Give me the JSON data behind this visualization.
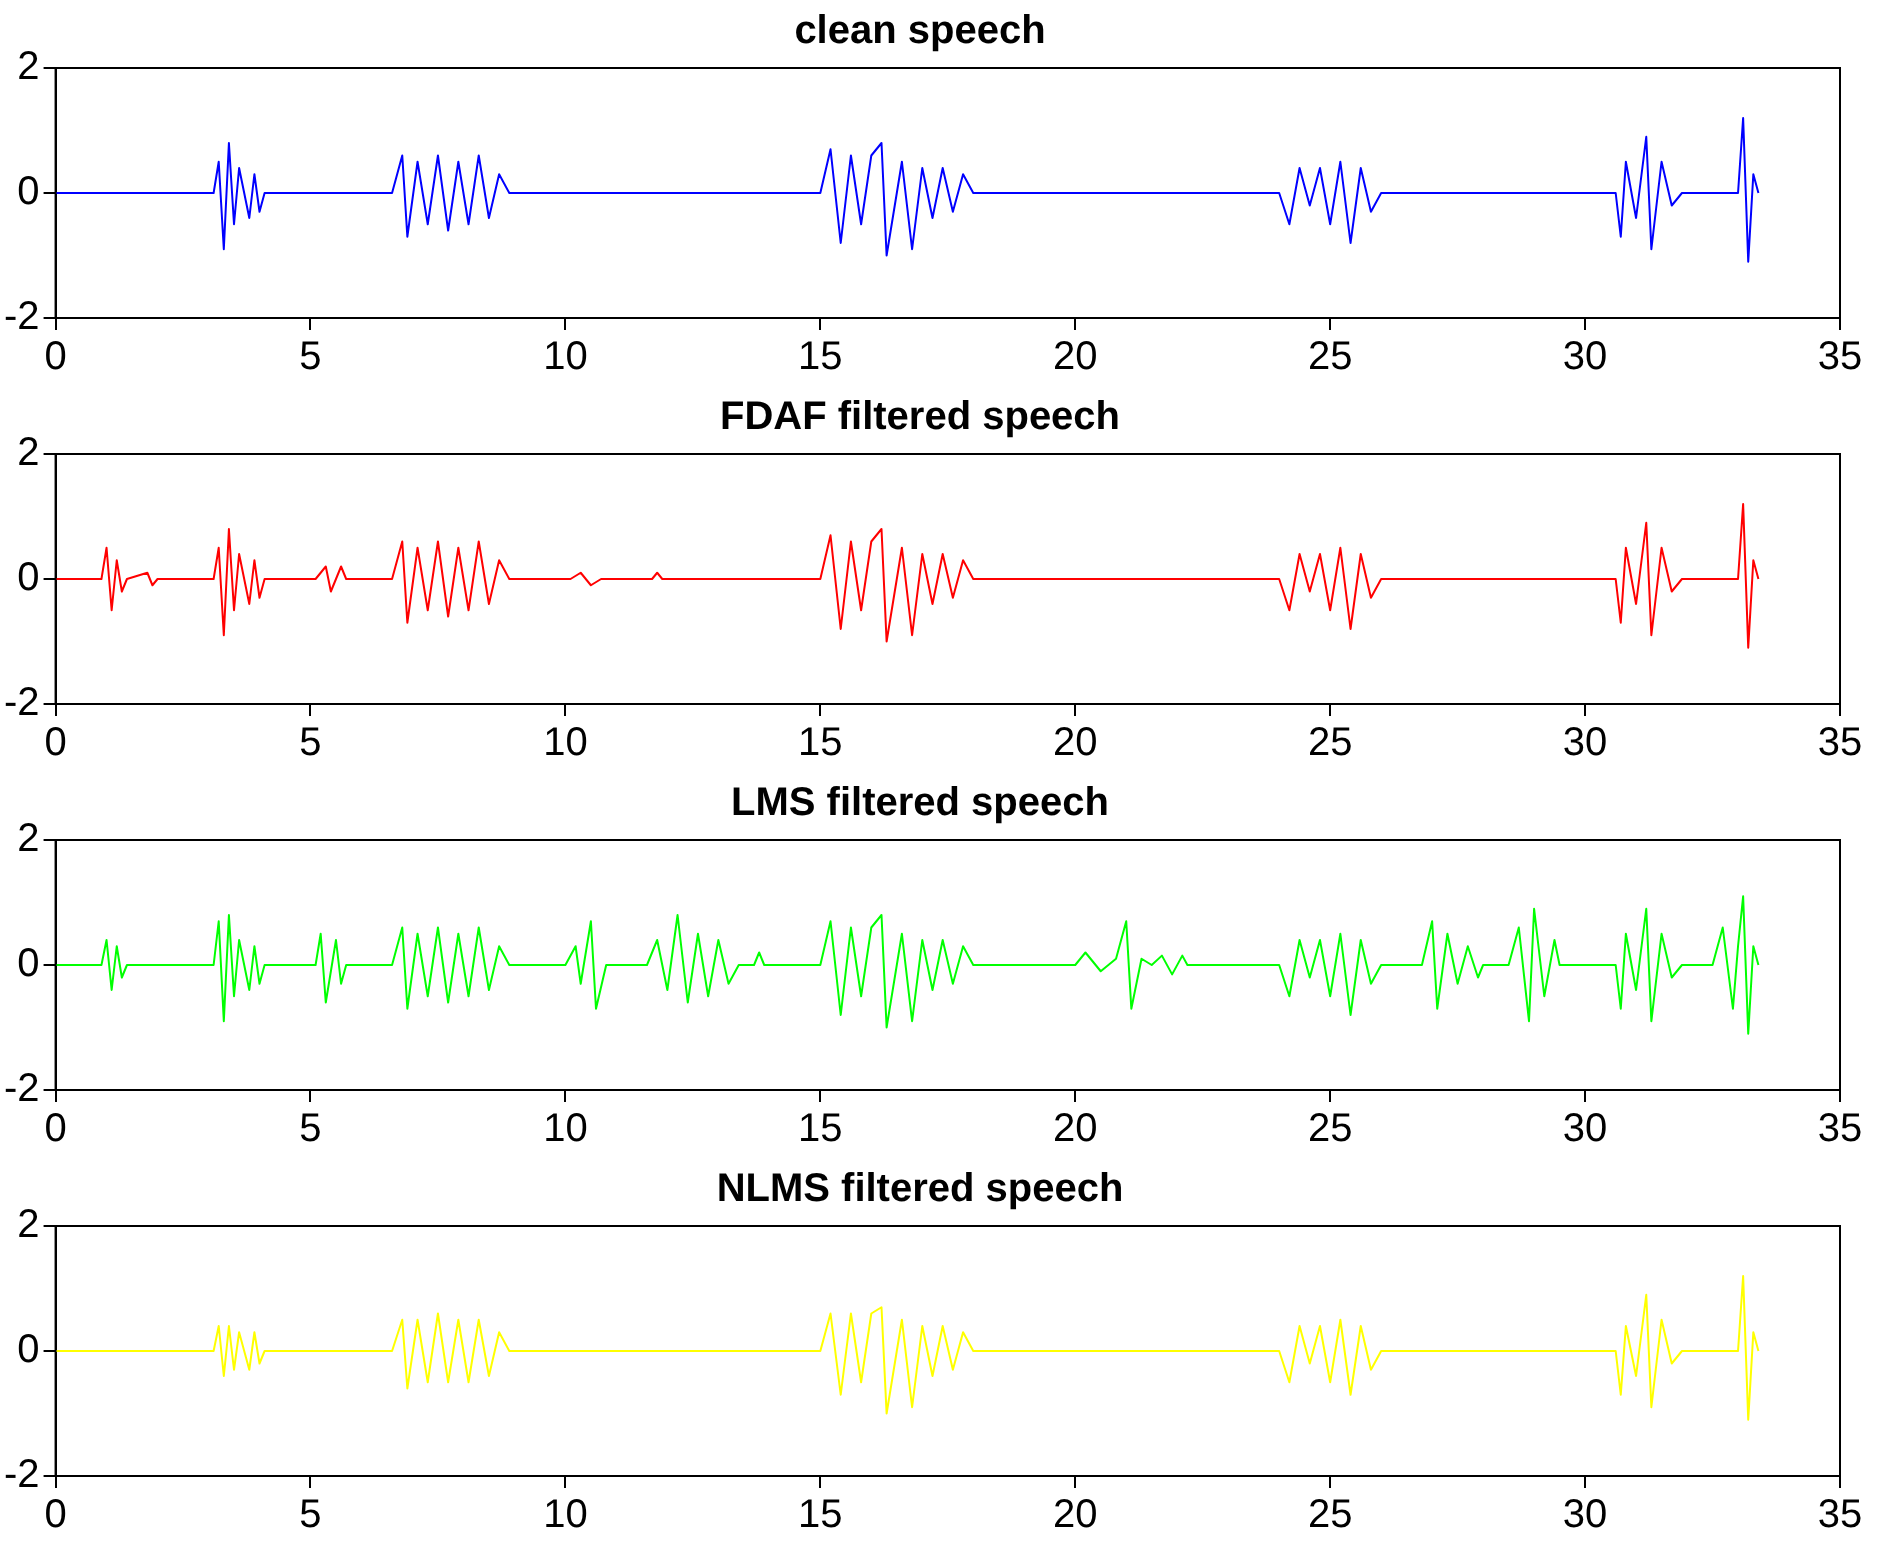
{
  "chart_data": [
    {
      "type": "line",
      "title": "clean speech",
      "xlim": [
        0,
        35
      ],
      "xticks": [
        0,
        5,
        10,
        15,
        20,
        25,
        30,
        35
      ],
      "ylim": [
        -2,
        2
      ],
      "yticks": [
        -2,
        0,
        2
      ],
      "grid": false,
      "legend": false,
      "marker": "none",
      "series": [
        {
          "color": "#0000ff",
          "x": [
            0,
            3.1,
            3.2,
            3.3,
            3.4,
            3.5,
            3.6,
            3.8,
            3.9,
            4.0,
            4.1,
            6.6,
            6.8,
            6.9,
            7.1,
            7.3,
            7.5,
            7.7,
            7.9,
            8.1,
            8.3,
            8.5,
            8.7,
            8.9,
            15.0,
            15.2,
            15.4,
            15.6,
            15.8,
            16.0,
            16.2,
            16.3,
            16.6,
            16.8,
            17.0,
            17.2,
            17.4,
            17.6,
            17.8,
            18.0,
            24.0,
            24.2,
            24.4,
            24.6,
            24.8,
            25.0,
            25.2,
            25.4,
            25.6,
            25.8,
            26.0,
            30.6,
            30.7,
            30.8,
            31.0,
            31.2,
            31.3,
            31.5,
            31.7,
            31.9,
            33.0,
            33.1,
            33.2,
            33.3,
            33.4
          ],
          "values": [
            0,
            0,
            0.5,
            -0.9,
            0.8,
            -0.5,
            0.4,
            -0.4,
            0.3,
            -0.3,
            0,
            0,
            0.6,
            -0.7,
            0.5,
            -0.5,
            0.6,
            -0.6,
            0.5,
            -0.5,
            0.6,
            -0.4,
            0.3,
            0,
            0,
            0.7,
            -0.8,
            0.6,
            -0.5,
            0.6,
            0.8,
            -1.0,
            0.5,
            -0.9,
            0.4,
            -0.4,
            0.4,
            -0.3,
            0.3,
            0,
            0,
            -0.5,
            0.4,
            -0.2,
            0.4,
            -0.5,
            0.5,
            -0.8,
            0.4,
            -0.3,
            0,
            0,
            -0.7,
            0.5,
            -0.4,
            0.9,
            -0.9,
            0.5,
            -0.2,
            0,
            0,
            1.2,
            -1.1,
            0.3,
            0
          ]
        }
      ]
    },
    {
      "type": "line",
      "title": "FDAF filtered speech",
      "xlim": [
        0,
        35
      ],
      "xticks": [
        0,
        5,
        10,
        15,
        20,
        25,
        30,
        35
      ],
      "ylim": [
        -2,
        2
      ],
      "yticks": [
        -2,
        0,
        2
      ],
      "grid": false,
      "legend": false,
      "marker": "none",
      "series": [
        {
          "color": "#ff0000",
          "x": [
            0,
            0.9,
            1.0,
            1.1,
            1.2,
            1.3,
            1.4,
            1.8,
            1.9,
            2.0,
            3.1,
            3.2,
            3.3,
            3.4,
            3.5,
            3.6,
            3.8,
            3.9,
            4.0,
            4.1,
            5.1,
            5.3,
            5.4,
            5.6,
            5.7,
            6.6,
            6.8,
            6.9,
            7.1,
            7.3,
            7.5,
            7.7,
            7.9,
            8.1,
            8.3,
            8.5,
            8.7,
            8.9,
            10.1,
            10.3,
            10.5,
            10.7,
            11.7,
            11.8,
            11.9,
            15.0,
            15.2,
            15.4,
            15.6,
            15.8,
            16.0,
            16.2,
            16.3,
            16.6,
            16.8,
            17.0,
            17.2,
            17.4,
            17.6,
            17.8,
            18.0,
            24.0,
            24.2,
            24.4,
            24.6,
            24.8,
            25.0,
            25.2,
            25.4,
            25.6,
            25.8,
            26.0,
            30.6,
            30.7,
            30.8,
            31.0,
            31.2,
            31.3,
            31.5,
            31.7,
            31.9,
            33.0,
            33.1,
            33.2,
            33.3,
            33.4
          ],
          "values": [
            0,
            0,
            0.5,
            -0.5,
            0.3,
            -0.2,
            0,
            0.1,
            -0.1,
            0,
            0,
            0.5,
            -0.9,
            0.8,
            -0.5,
            0.4,
            -0.4,
            0.3,
            -0.3,
            0,
            0,
            0.2,
            -0.2,
            0.2,
            0,
            0,
            0.6,
            -0.7,
            0.5,
            -0.5,
            0.6,
            -0.6,
            0.5,
            -0.5,
            0.6,
            -0.4,
            0.3,
            0,
            0,
            0.1,
            -0.1,
            0,
            0,
            0.1,
            0,
            0,
            0.7,
            -0.8,
            0.6,
            -0.5,
            0.6,
            0.8,
            -1.0,
            0.5,
            -0.9,
            0.4,
            -0.4,
            0.4,
            -0.3,
            0.3,
            0,
            0,
            -0.5,
            0.4,
            -0.2,
            0.4,
            -0.5,
            0.5,
            -0.8,
            0.4,
            -0.3,
            0,
            0,
            -0.7,
            0.5,
            -0.4,
            0.9,
            -0.9,
            0.5,
            -0.2,
            0,
            0,
            1.2,
            -1.1,
            0.3,
            0
          ]
        }
      ]
    },
    {
      "type": "line",
      "title": "LMS filtered speech",
      "xlim": [
        0,
        35
      ],
      "xticks": [
        0,
        5,
        10,
        15,
        20,
        25,
        30,
        35
      ],
      "ylim": [
        -2,
        2
      ],
      "yticks": [
        -2,
        0,
        2
      ],
      "grid": false,
      "legend": false,
      "marker": "none",
      "series": [
        {
          "color": "#00ff00",
          "x": [
            0,
            0.9,
            1.0,
            1.1,
            1.2,
            1.3,
            1.4,
            3.1,
            3.2,
            3.3,
            3.4,
            3.5,
            3.6,
            3.8,
            3.9,
            4.0,
            4.1,
            5.1,
            5.2,
            5.3,
            5.5,
            5.6,
            5.7,
            6.6,
            6.8,
            6.9,
            7.1,
            7.3,
            7.5,
            7.7,
            7.9,
            8.1,
            8.3,
            8.5,
            8.7,
            8.9,
            10.0,
            10.2,
            10.3,
            10.5,
            10.6,
            10.8,
            11.6,
            11.8,
            12.0,
            12.2,
            12.4,
            12.6,
            12.8,
            13.0,
            13.2,
            13.4,
            13.7,
            13.8,
            13.9,
            15.0,
            15.2,
            15.4,
            15.6,
            15.8,
            16.0,
            16.2,
            16.3,
            16.6,
            16.8,
            17.0,
            17.2,
            17.4,
            17.6,
            17.8,
            18.0,
            20.0,
            20.2,
            20.5,
            20.8,
            21.0,
            21.1,
            21.3,
            21.5,
            21.7,
            21.9,
            22.1,
            22.2,
            24.0,
            24.2,
            24.4,
            24.6,
            24.8,
            25.0,
            25.2,
            25.4,
            25.6,
            25.8,
            26.0,
            26.8,
            27.0,
            27.1,
            27.3,
            27.5,
            27.7,
            27.9,
            28.0,
            28.5,
            28.7,
            28.9,
            29.0,
            29.2,
            29.4,
            29.5,
            30.6,
            30.7,
            30.8,
            31.0,
            31.2,
            31.3,
            31.5,
            31.7,
            31.9,
            32.5,
            32.7,
            32.9,
            33.0,
            33.1,
            33.2,
            33.3,
            33.4
          ],
          "values": [
            0,
            0,
            0.4,
            -0.4,
            0.3,
            -0.2,
            0,
            0,
            0.7,
            -0.9,
            0.8,
            -0.5,
            0.4,
            -0.4,
            0.3,
            -0.3,
            0,
            0,
            0.5,
            -0.6,
            0.4,
            -0.3,
            0,
            0,
            0.6,
            -0.7,
            0.5,
            -0.5,
            0.6,
            -0.6,
            0.5,
            -0.5,
            0.6,
            -0.4,
            0.3,
            0,
            0,
            0.3,
            -0.3,
            0.7,
            -0.7,
            0,
            0,
            0.4,
            -0.4,
            0.8,
            -0.6,
            0.5,
            -0.5,
            0.4,
            -0.3,
            0,
            0,
            0.2,
            0,
            0,
            0.7,
            -0.8,
            0.6,
            -0.5,
            0.6,
            0.8,
            -1.0,
            0.5,
            -0.9,
            0.4,
            -0.4,
            0.4,
            -0.3,
            0.3,
            0,
            0,
            0.2,
            -0.1,
            0.1,
            0.7,
            -0.7,
            0.1,
            0,
            0.15,
            -0.15,
            0.15,
            0,
            0,
            -0.5,
            0.4,
            -0.2,
            0.4,
            -0.5,
            0.5,
            -0.8,
            0.4,
            -0.3,
            0,
            0,
            0.7,
            -0.7,
            0.5,
            -0.3,
            0.3,
            -0.2,
            0,
            0,
            0.6,
            -0.9,
            0.9,
            -0.5,
            0.4,
            0,
            0,
            -0.7,
            0.5,
            -0.4,
            0.9,
            -0.9,
            0.5,
            -0.2,
            0,
            0,
            0.6,
            -0.7,
            0.3,
            1.1,
            -1.1,
            0.3,
            0
          ]
        }
      ]
    },
    {
      "type": "line",
      "title": "NLMS filtered speech",
      "xlim": [
        0,
        35
      ],
      "xticks": [
        0,
        5,
        10,
        15,
        20,
        25,
        30,
        35
      ],
      "ylim": [
        -2,
        2
      ],
      "yticks": [
        -2,
        0,
        2
      ],
      "grid": false,
      "legend": false,
      "marker": "none",
      "series": [
        {
          "color": "#ffff00",
          "x": [
            0,
            3.1,
            3.2,
            3.3,
            3.4,
            3.5,
            3.6,
            3.8,
            3.9,
            4.0,
            4.1,
            6.6,
            6.8,
            6.9,
            7.1,
            7.3,
            7.5,
            7.7,
            7.9,
            8.1,
            8.3,
            8.5,
            8.7,
            8.9,
            15.0,
            15.2,
            15.4,
            15.6,
            15.8,
            16.0,
            16.2,
            16.3,
            16.6,
            16.8,
            17.0,
            17.2,
            17.4,
            17.6,
            17.8,
            18.0,
            24.0,
            24.2,
            24.4,
            24.6,
            24.8,
            25.0,
            25.2,
            25.4,
            25.6,
            25.8,
            26.0,
            30.6,
            30.7,
            30.8,
            31.0,
            31.2,
            31.3,
            31.5,
            31.7,
            31.9,
            33.0,
            33.1,
            33.2,
            33.3,
            33.4
          ],
          "values": [
            0,
            0,
            0.4,
            -0.4,
            0.4,
            -0.3,
            0.3,
            -0.3,
            0.3,
            -0.2,
            0,
            0,
            0.5,
            -0.6,
            0.5,
            -0.5,
            0.6,
            -0.5,
            0.5,
            -0.5,
            0.5,
            -0.4,
            0.3,
            0,
            0,
            0.6,
            -0.7,
            0.6,
            -0.5,
            0.6,
            0.7,
            -1.0,
            0.5,
            -0.9,
            0.4,
            -0.4,
            0.4,
            -0.3,
            0.3,
            0,
            0,
            -0.5,
            0.4,
            -0.2,
            0.4,
            -0.5,
            0.5,
            -0.7,
            0.4,
            -0.3,
            0,
            0,
            -0.7,
            0.4,
            -0.4,
            0.9,
            -0.9,
            0.5,
            -0.2,
            0,
            0,
            1.2,
            -1.1,
            0.3,
            0
          ]
        }
      ]
    }
  ]
}
